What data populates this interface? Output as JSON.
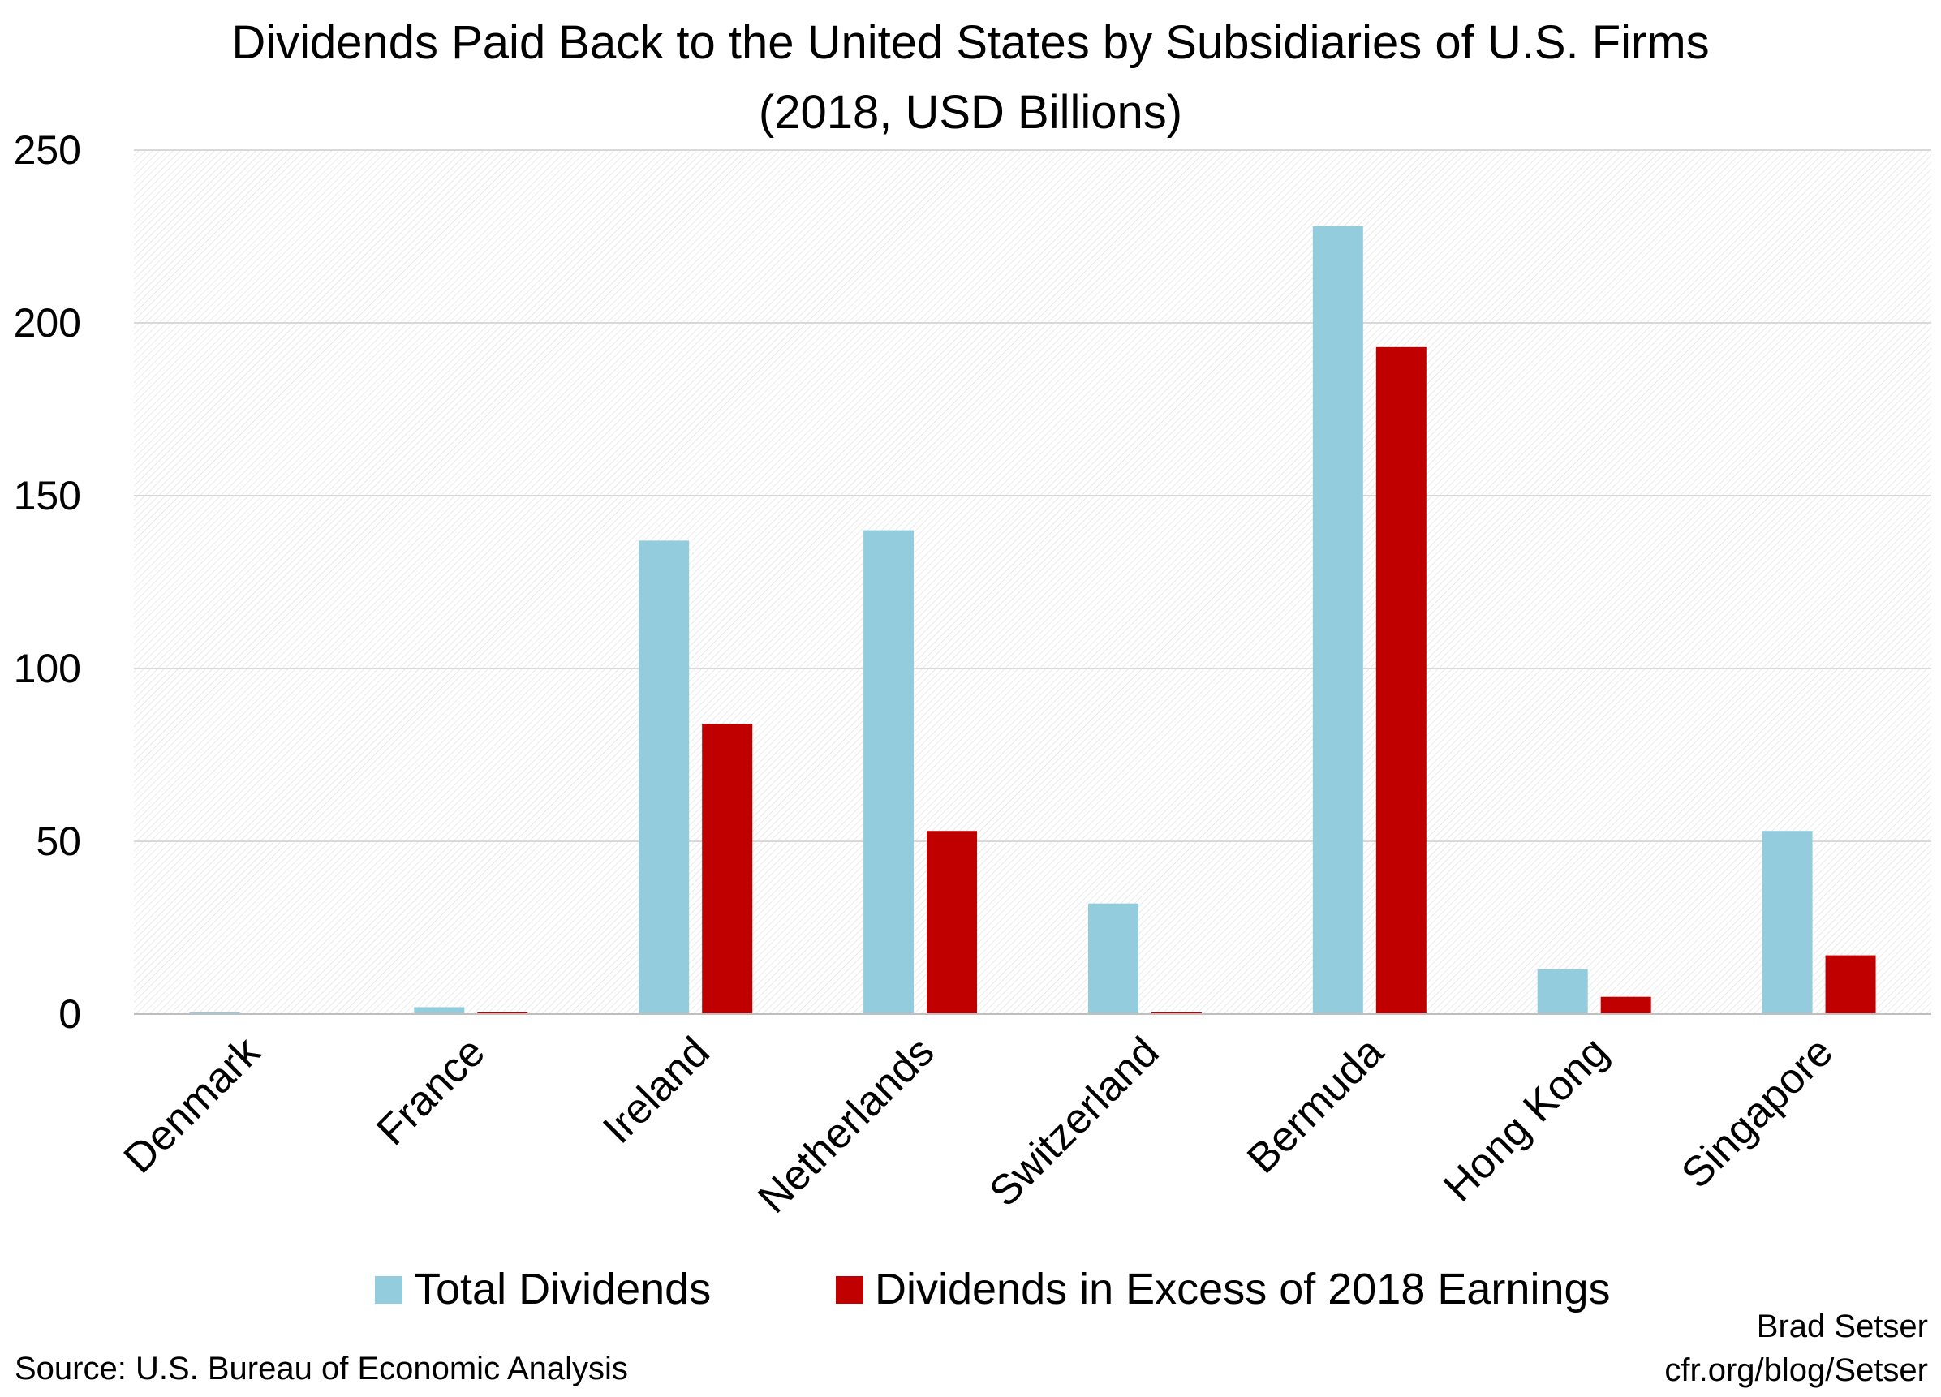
{
  "chart_data": {
    "type": "bar",
    "title": "Dividends Paid Back to the United States by Subsidiaries of U.S. Firms",
    "subtitle": "(2018, USD Billions)",
    "categories": [
      "Denmark",
      "France",
      "Ireland",
      "Netherlands",
      "Switzerland",
      "Bermuda",
      "Hong Kong",
      "Singapore"
    ],
    "series": [
      {
        "name": "Total Dividends",
        "color": "#93CDDD",
        "values": [
          0.5,
          2,
          137,
          140,
          32,
          228,
          13,
          53
        ]
      },
      {
        "name": "Dividends in Excess of 2018 Earnings",
        "color": "#C00000",
        "values": [
          0,
          0.5,
          84,
          53,
          0.5,
          193,
          5,
          17
        ]
      }
    ],
    "ylim": [
      0,
      250
    ],
    "yticks": [
      "0",
      "50",
      "100",
      "150",
      "200",
      "250"
    ],
    "grid": true,
    "legend_position": "bottom",
    "source": "Source: U.S. Bureau of Economic Analysis",
    "credit_name": "Brad Setser",
    "credit_url": "cfr.org/blog/Setser"
  }
}
